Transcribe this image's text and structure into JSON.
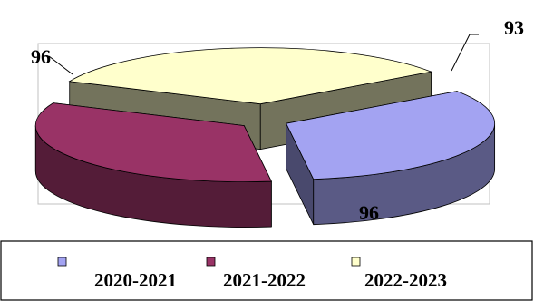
{
  "chart_data": {
    "type": "pie",
    "style": "3d-exploded",
    "labels": [
      "2020-2021",
      "2021-2022",
      "2022-2023"
    ],
    "values": [
      93,
      96,
      96
    ],
    "data_labels": [
      "93",
      "96",
      "96"
    ],
    "colors": [
      "#a3a3f2",
      "#993366",
      "#ffffcc"
    ],
    "legend": {
      "placement": "bottom",
      "entries": [
        "2020-2021",
        "2021-2022",
        "2022-2023"
      ]
    }
  }
}
